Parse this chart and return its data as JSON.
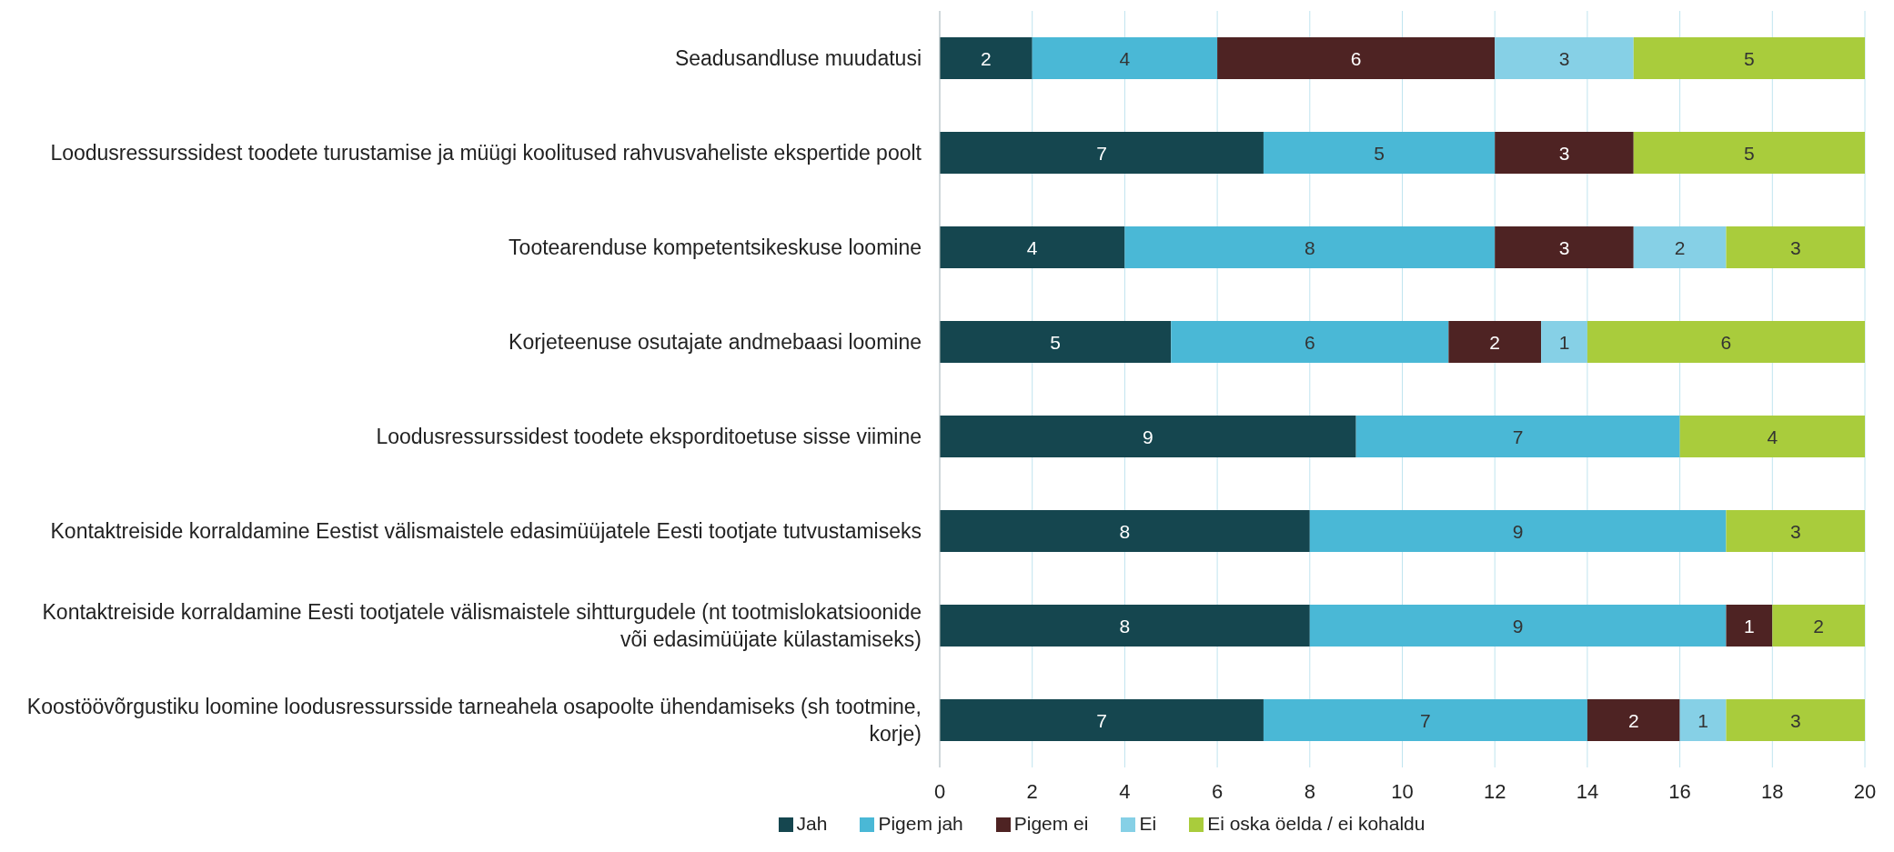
{
  "chart_data": {
    "type": "bar",
    "orientation": "horizontal",
    "stacked": true,
    "data_labels": true,
    "grid": "x",
    "legend": "bottom",
    "categories": [
      "Seadusandluse muudatusi",
      "Loodusressurssidest toodete turustamise ja müügi koolitused rahvusvaheliste ekspertide poolt",
      "Tootearenduse kompetentsikeskuse loomine",
      "Korjeteenuse osutajate andmebaasi loomine",
      "Loodusressurssidest toodete eksporditoetuse sisse viimine",
      "Kontaktreiside korraldamine Eestist välismaistele edasimüüjatele Eesti tootjate tutvustamiseks",
      "Kontaktreiside korraldamine Eesti tootjatele välismaistele sihtturgudele (nt tootmislokatsioonide või edasimüüjate külastamiseks)",
      "Koostöövõrgustiku loomine loodusressursside tarneahela osapoolte ühendamiseks (sh tootmine, korje)"
    ],
    "series": [
      {
        "name": "Jah",
        "color": "#15464f",
        "values": [
          2,
          7,
          4,
          5,
          9,
          8,
          8,
          7
        ]
      },
      {
        "name": "Pigem jah",
        "color": "#4ab8d6",
        "values": [
          4,
          5,
          8,
          6,
          7,
          9,
          9,
          7
        ]
      },
      {
        "name": "Pigem ei",
        "color": "#4e2323",
        "values": [
          6,
          3,
          3,
          2,
          null,
          null,
          1,
          2
        ]
      },
      {
        "name": "Ei",
        "color": "#86d0e6",
        "values": [
          3,
          null,
          2,
          1,
          null,
          null,
          null,
          1
        ]
      },
      {
        "name": "Ei oska öelda / ei kohaldu",
        "color": "#a9cc3c",
        "values": [
          5,
          5,
          3,
          6,
          4,
          3,
          2,
          3
        ]
      }
    ],
    "xlim": [
      0,
      20
    ],
    "xticks": [
      0,
      2,
      4,
      6,
      8,
      10,
      12,
      14,
      16,
      18,
      20
    ]
  }
}
